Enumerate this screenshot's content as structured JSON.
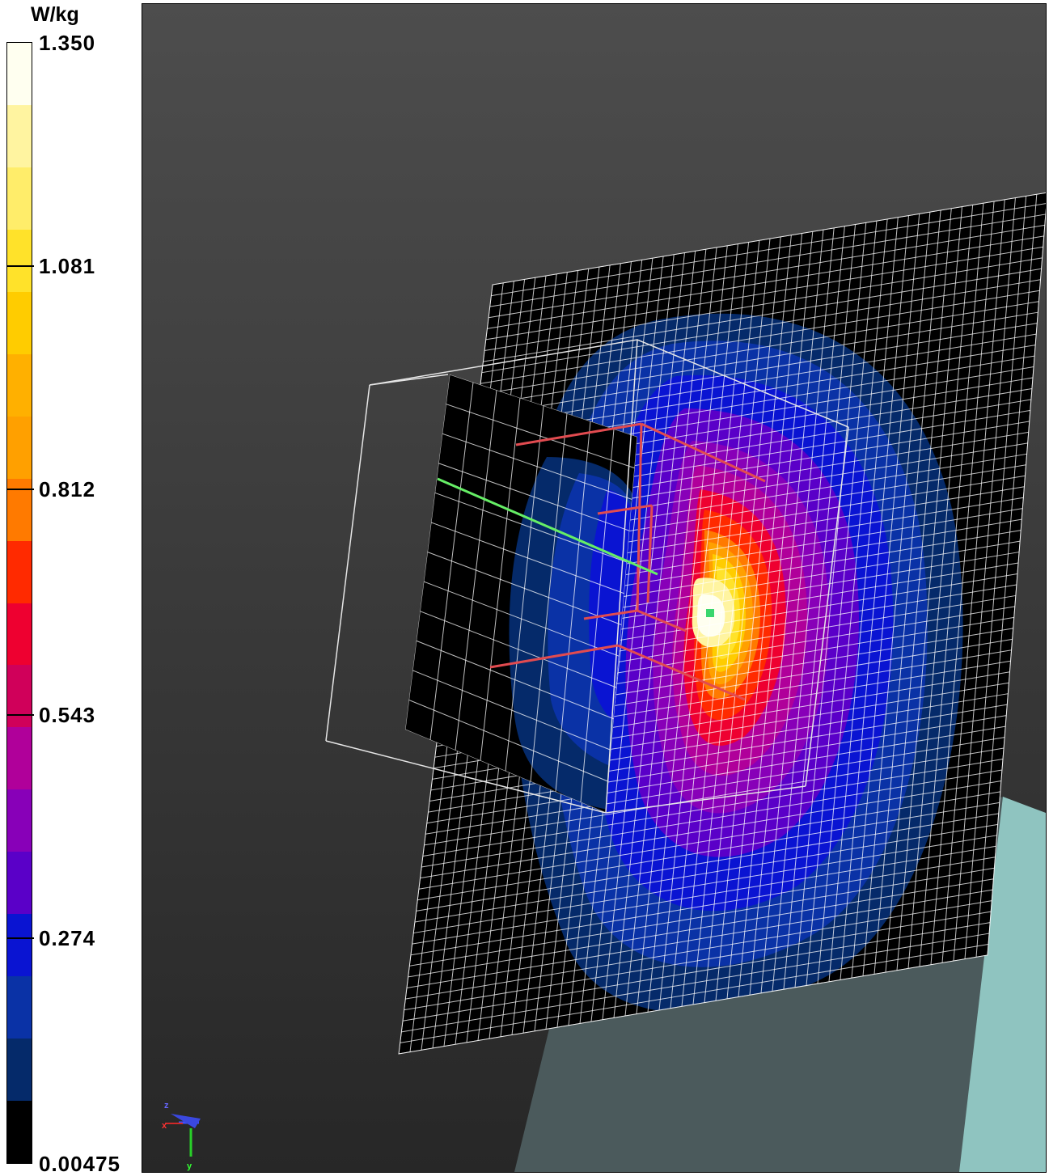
{
  "legend": {
    "unit": "W/kg",
    "ticks": [
      {
        "label": "1.350"
      },
      {
        "label": "1.081"
      },
      {
        "label": "0.812"
      },
      {
        "label": "0.543"
      },
      {
        "label": "0.274"
      },
      {
        "label": "0.00475"
      }
    ],
    "colors": [
      "#fffff0",
      "#fff4a0",
      "#ffed6a",
      "#ffe22a",
      "#ffcc00",
      "#ffb000",
      "#ffa000",
      "#ff7a00",
      "#ff2a00",
      "#ee0030",
      "#d0005a",
      "#b0009a",
      "#8800b8",
      "#5a00c8",
      "#0a14d2",
      "#0a32a6",
      "#052a6a",
      "#000000"
    ]
  },
  "viewer": {
    "background_top": "#4d4d4d",
    "background_bottom": "#272727",
    "floor_color": "#4b5a5c",
    "side_panel_color": "#8fc4c0",
    "max_point_color": "#3ad66e",
    "probe_color": "#e24b50",
    "probe_green": "#66ee66"
  },
  "axes": {
    "x_label": "x",
    "y_label": "y",
    "z_label": "z"
  }
}
